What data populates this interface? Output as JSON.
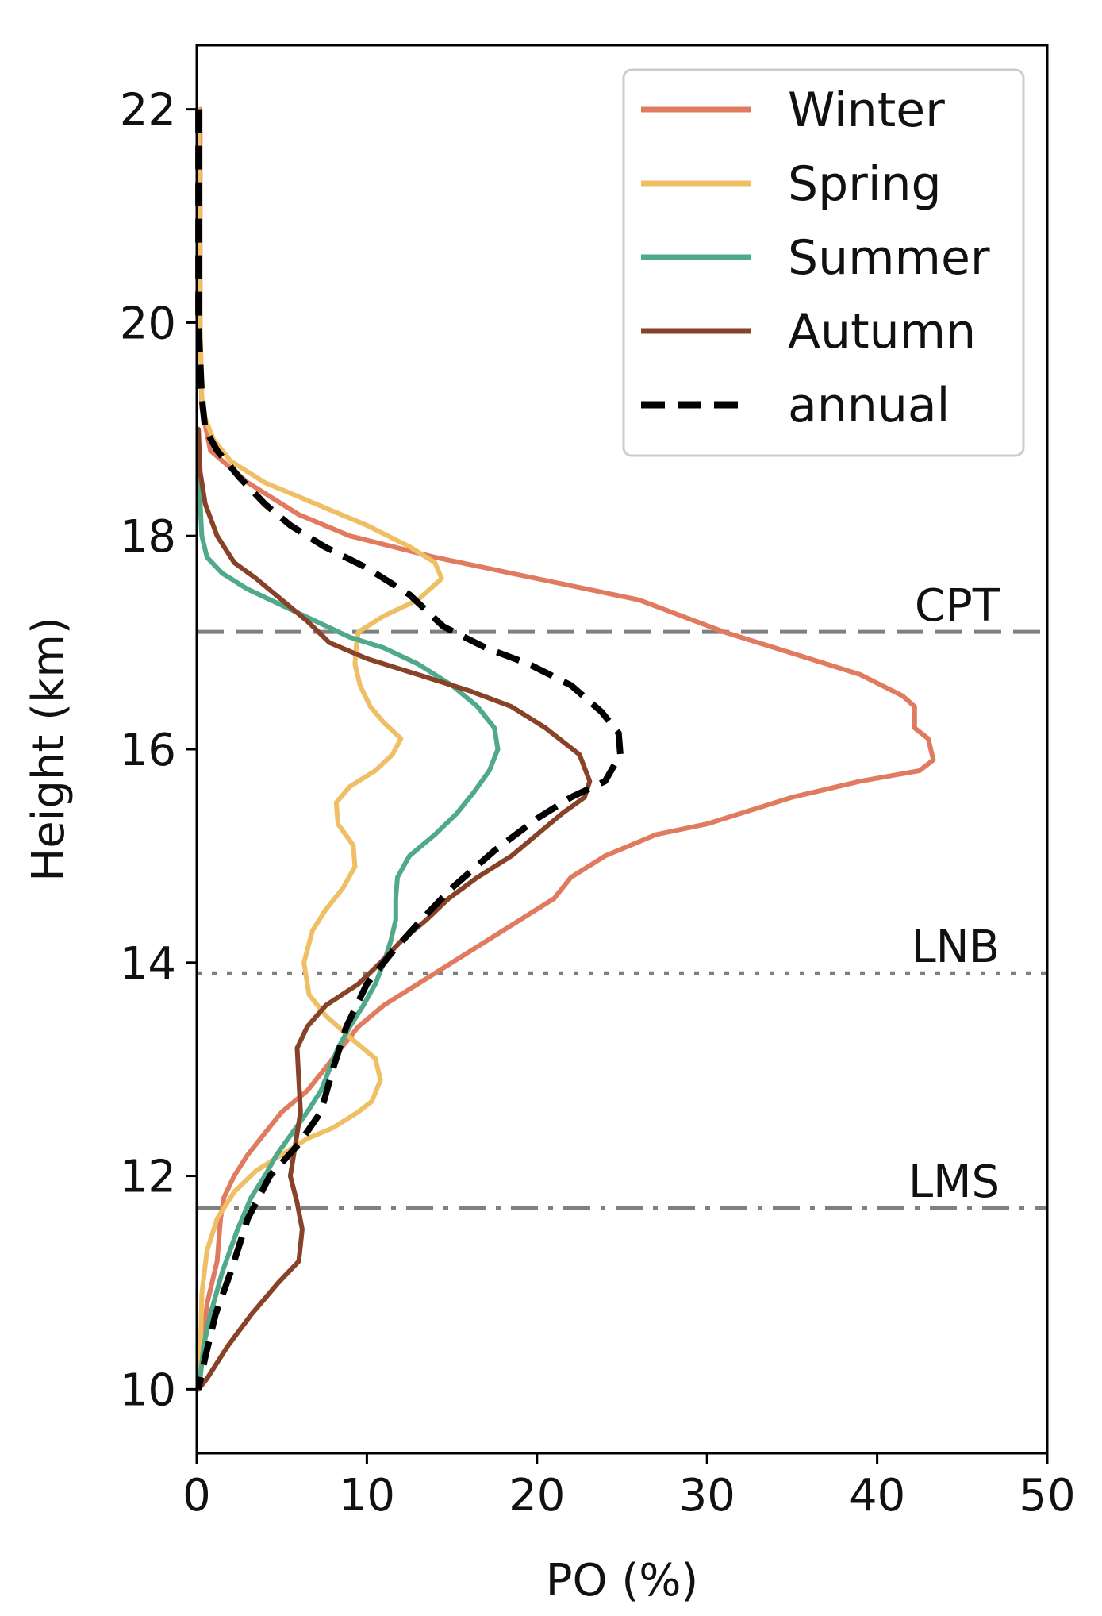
{
  "chart_data": {
    "type": "line",
    "title": "",
    "xlabel": "PO (%)",
    "ylabel": "Height (km)",
    "xlim": [
      0,
      50
    ],
    "ylim": [
      9.4,
      22.6
    ],
    "xticks": [
      0,
      10,
      20,
      30,
      40,
      50
    ],
    "yticks": [
      10,
      12,
      14,
      16,
      18,
      20,
      22
    ],
    "x_tick_labels": [
      "0",
      "10",
      "20",
      "30",
      "40",
      "50"
    ],
    "y_tick_labels": [
      "10",
      "12",
      "14",
      "16",
      "18",
      "20",
      "22"
    ],
    "grid": false,
    "legend_position": "top-right",
    "series": [
      {
        "name": "Winter",
        "color": "#e07b5f",
        "dash": "solid",
        "points": [
          [
            0.2,
            22.0
          ],
          [
            0.2,
            20.0
          ],
          [
            0.3,
            19.2
          ],
          [
            0.8,
            18.8
          ],
          [
            3,
            18.5
          ],
          [
            6,
            18.2
          ],
          [
            9,
            18.0
          ],
          [
            14,
            17.8
          ],
          [
            20,
            17.6
          ],
          [
            26,
            17.4
          ],
          [
            31,
            17.1
          ],
          [
            35,
            16.9
          ],
          [
            39,
            16.7
          ],
          [
            41.5,
            16.5
          ],
          [
            42.2,
            16.4
          ],
          [
            42.2,
            16.2
          ],
          [
            43,
            16.1
          ],
          [
            43.3,
            15.9
          ],
          [
            42.5,
            15.8
          ],
          [
            39,
            15.7
          ],
          [
            35,
            15.55
          ],
          [
            32,
            15.4
          ],
          [
            30,
            15.3
          ],
          [
            27,
            15.2
          ],
          [
            24,
            15.0
          ],
          [
            22,
            14.8
          ],
          [
            21,
            14.6
          ],
          [
            19,
            14.4
          ],
          [
            17,
            14.2
          ],
          [
            15,
            14.0
          ],
          [
            13,
            13.8
          ],
          [
            11,
            13.6
          ],
          [
            9.5,
            13.4
          ],
          [
            8.5,
            13.2
          ],
          [
            7.5,
            13.0
          ],
          [
            6.5,
            12.8
          ],
          [
            5,
            12.6
          ],
          [
            4,
            12.4
          ],
          [
            3,
            12.2
          ],
          [
            2.2,
            12.0
          ],
          [
            1.6,
            11.8
          ],
          [
            1.4,
            11.6
          ],
          [
            1.2,
            11.2
          ],
          [
            0.6,
            10.8
          ],
          [
            0.3,
            10.3
          ],
          [
            0.1,
            10.0
          ]
        ]
      },
      {
        "name": "Spring",
        "color": "#efbf65",
        "dash": "solid",
        "points": [
          [
            0.1,
            22.0
          ],
          [
            0.2,
            20.0
          ],
          [
            0.3,
            19.3
          ],
          [
            0.5,
            19.1
          ],
          [
            1,
            18.9
          ],
          [
            2,
            18.7
          ],
          [
            4,
            18.5
          ],
          [
            7,
            18.3
          ],
          [
            10,
            18.1
          ],
          [
            12.5,
            17.9
          ],
          [
            14,
            17.75
          ],
          [
            14.4,
            17.6
          ],
          [
            13,
            17.4
          ],
          [
            11,
            17.25
          ],
          [
            9.5,
            17.1
          ],
          [
            9.4,
            17.0
          ],
          [
            9.3,
            16.8
          ],
          [
            9.6,
            16.6
          ],
          [
            10.2,
            16.4
          ],
          [
            11,
            16.25
          ],
          [
            12,
            16.1
          ],
          [
            11.5,
            15.95
          ],
          [
            10.5,
            15.8
          ],
          [
            9,
            15.65
          ],
          [
            8.2,
            15.5
          ],
          [
            8.3,
            15.3
          ],
          [
            9.2,
            15.1
          ],
          [
            9.3,
            14.9
          ],
          [
            8.6,
            14.7
          ],
          [
            7.6,
            14.5
          ],
          [
            6.8,
            14.3
          ],
          [
            6.3,
            14.0
          ],
          [
            6.6,
            13.7
          ],
          [
            7.6,
            13.5
          ],
          [
            9,
            13.3
          ],
          [
            10.5,
            13.1
          ],
          [
            10.8,
            12.9
          ],
          [
            10.3,
            12.7
          ],
          [
            9.5,
            12.6
          ],
          [
            8,
            12.45
          ],
          [
            6.5,
            12.35
          ],
          [
            5,
            12.2
          ],
          [
            3.5,
            12.05
          ],
          [
            2.2,
            11.85
          ],
          [
            1.2,
            11.6
          ],
          [
            0.6,
            11.3
          ],
          [
            0.3,
            10.9
          ],
          [
            0.2,
            10.3
          ],
          [
            0.1,
            10.0
          ]
        ]
      },
      {
        "name": "Summer",
        "color": "#4fa98a",
        "dash": "solid",
        "points": [
          [
            0.1,
            18.6
          ],
          [
            0.2,
            18.3
          ],
          [
            0.3,
            18.0
          ],
          [
            0.6,
            17.8
          ],
          [
            1.5,
            17.65
          ],
          [
            3,
            17.5
          ],
          [
            5,
            17.35
          ],
          [
            7,
            17.2
          ],
          [
            9,
            17.05
          ],
          [
            11,
            16.95
          ],
          [
            13,
            16.8
          ],
          [
            15,
            16.6
          ],
          [
            16.5,
            16.4
          ],
          [
            17.5,
            16.2
          ],
          [
            17.7,
            16.0
          ],
          [
            17.2,
            15.8
          ],
          [
            16.3,
            15.6
          ],
          [
            15.3,
            15.4
          ],
          [
            14,
            15.2
          ],
          [
            12.5,
            15.0
          ],
          [
            11.8,
            14.8
          ],
          [
            11.7,
            14.6
          ],
          [
            11.7,
            14.4
          ],
          [
            11.4,
            14.2
          ],
          [
            11,
            14.0
          ],
          [
            10.5,
            13.8
          ],
          [
            9.8,
            13.6
          ],
          [
            9,
            13.4
          ],
          [
            8.3,
            13.2
          ],
          [
            7.8,
            13.0
          ],
          [
            7.3,
            12.8
          ],
          [
            6.5,
            12.6
          ],
          [
            5.6,
            12.4
          ],
          [
            4.7,
            12.2
          ],
          [
            4,
            12.0
          ],
          [
            3.2,
            11.8
          ],
          [
            2.4,
            11.5
          ],
          [
            1.5,
            11.1
          ],
          [
            0.8,
            10.7
          ],
          [
            0.4,
            10.4
          ],
          [
            0.2,
            10.1
          ]
        ]
      },
      {
        "name": "Autumn",
        "color": "#874228",
        "dash": "solid",
        "points": [
          [
            0.1,
            19.0
          ],
          [
            0.2,
            18.6
          ],
          [
            0.5,
            18.3
          ],
          [
            1.2,
            18.0
          ],
          [
            2.2,
            17.75
          ],
          [
            3.5,
            17.6
          ],
          [
            5,
            17.4
          ],
          [
            6.5,
            17.2
          ],
          [
            7.8,
            17.0
          ],
          [
            10,
            16.85
          ],
          [
            13,
            16.7
          ],
          [
            16,
            16.55
          ],
          [
            18.5,
            16.4
          ],
          [
            20.5,
            16.2
          ],
          [
            22.5,
            15.95
          ],
          [
            23.1,
            15.7
          ],
          [
            22.8,
            15.55
          ],
          [
            21.5,
            15.4
          ],
          [
            20,
            15.2
          ],
          [
            18.5,
            15.0
          ],
          [
            16.5,
            14.8
          ],
          [
            14.8,
            14.6
          ],
          [
            13.5,
            14.4
          ],
          [
            12,
            14.2
          ],
          [
            10.8,
            14.0
          ],
          [
            9.5,
            13.8
          ],
          [
            7.6,
            13.6
          ],
          [
            6.5,
            13.4
          ],
          [
            5.9,
            13.2
          ],
          [
            6,
            12.9
          ],
          [
            6.1,
            12.6
          ],
          [
            5.8,
            12.3
          ],
          [
            5.5,
            12.0
          ],
          [
            5.9,
            11.75
          ],
          [
            6.2,
            11.5
          ],
          [
            6,
            11.2
          ],
          [
            4.8,
            11.0
          ],
          [
            3.2,
            10.7
          ],
          [
            1.8,
            10.4
          ],
          [
            0.6,
            10.1
          ],
          [
            0.1,
            10.0
          ]
        ]
      },
      {
        "name": "annual",
        "color": "#000000",
        "dash": "dashed",
        "points": [
          [
            0.1,
            22.0
          ],
          [
            0.1,
            20.0
          ],
          [
            0.3,
            19.3
          ],
          [
            0.5,
            19.0
          ],
          [
            1.2,
            18.8
          ],
          [
            2.5,
            18.55
          ],
          [
            4,
            18.3
          ],
          [
            5.5,
            18.1
          ],
          [
            7.5,
            17.9
          ],
          [
            10,
            17.7
          ],
          [
            12.5,
            17.45
          ],
          [
            14.5,
            17.15
          ],
          [
            17,
            16.95
          ],
          [
            19.5,
            16.8
          ],
          [
            22,
            16.6
          ],
          [
            23.8,
            16.35
          ],
          [
            24.8,
            16.15
          ],
          [
            24.9,
            15.95
          ],
          [
            24,
            15.7
          ],
          [
            22,
            15.55
          ],
          [
            20,
            15.35
          ],
          [
            17.5,
            15.05
          ],
          [
            15,
            14.7
          ],
          [
            13.2,
            14.4
          ],
          [
            11.5,
            14.1
          ],
          [
            10,
            13.8
          ],
          [
            8.8,
            13.4
          ],
          [
            8,
            13.0
          ],
          [
            7.3,
            12.6
          ],
          [
            6,
            12.3
          ],
          [
            4.3,
            12.0
          ],
          [
            3,
            11.6
          ],
          [
            2,
            11.1
          ],
          [
            1.1,
            10.7
          ],
          [
            0.5,
            10.3
          ],
          [
            0.1,
            10.0
          ]
        ]
      }
    ],
    "reference_lines": [
      {
        "label": "CPT",
        "y": 17.1,
        "style": "dashed",
        "color": "#808080"
      },
      {
        "label": "LNB",
        "y": 13.9,
        "style": "dotted",
        "color": "#808080"
      },
      {
        "label": "LMS",
        "y": 11.7,
        "style": "dashdot",
        "color": "#808080"
      }
    ]
  }
}
